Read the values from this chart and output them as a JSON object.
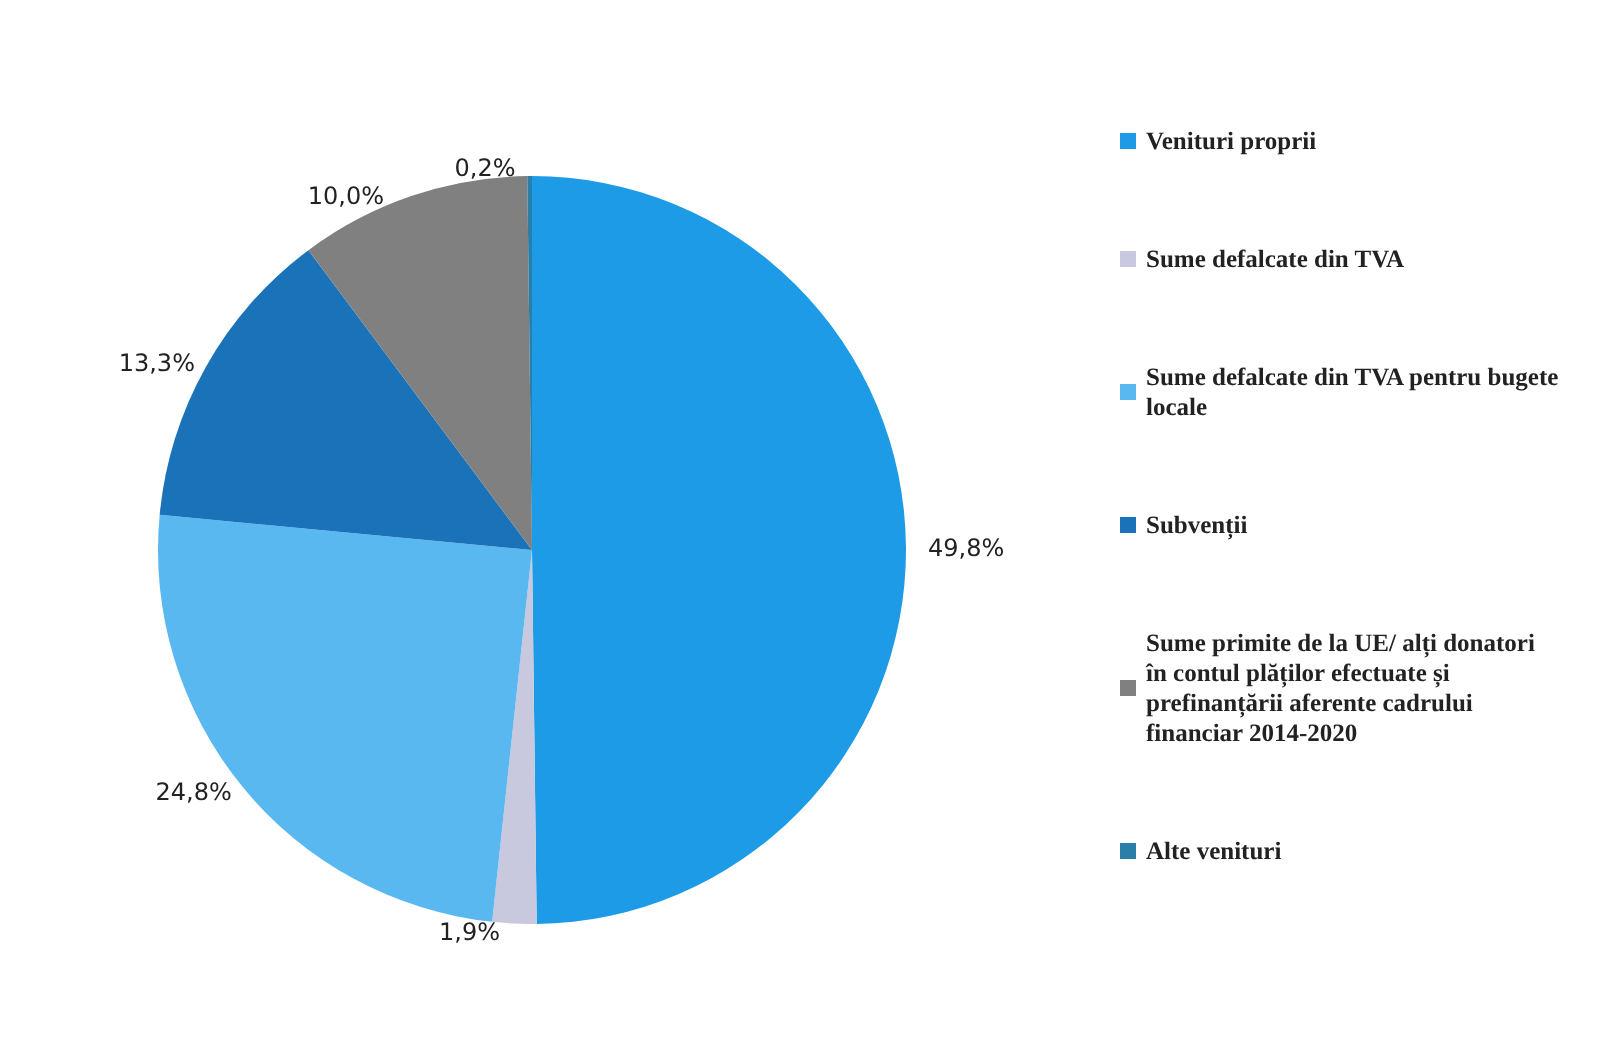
{
  "chart_data": {
    "type": "pie",
    "categories": [
      "Venituri proprii",
      "Sume defalcate din TVA",
      "Sume defalcate din TVA pentru bugete locale",
      "Subvenții",
      "Sume primite de la UE/ alți donatori în contul plăților efectuate și prefinanțării aferente cadrului financiar 2014-2020",
      "Alte venituri"
    ],
    "values": [
      49.8,
      1.9,
      24.8,
      13.3,
      10.0,
      0.2
    ],
    "value_labels": [
      "49,8%",
      "1,9%",
      "24,8%",
      "13,3%",
      "10,0%",
      "0,2%"
    ],
    "colors": [
      "#1e9be6",
      "#c8c8de",
      "#5ab8f0",
      "#1a72b8",
      "#808080",
      "#2a7fa8"
    ],
    "legend": "right"
  }
}
